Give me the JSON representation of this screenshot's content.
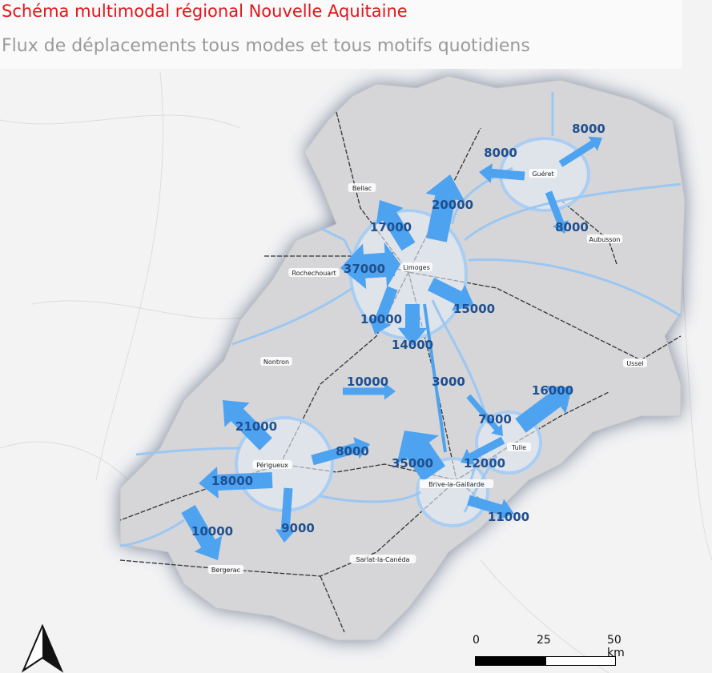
{
  "header": {
    "title": "Schéma multimodal régional Nouvelle Aquitaine",
    "subtitle": "Flux de déplacements tous modes et tous motifs quotidiens"
  },
  "colors": {
    "title": "#e3151a",
    "subtitle": "#9a9a9a",
    "flow_arrow": "#4ea3f0",
    "flow_label": "#1f4f8f",
    "region_fill": "#d6d6d8",
    "glow": "#4a5a78",
    "circle": "#a9cdf3"
  },
  "cities": [
    "Bellac",
    "Limoges",
    "Rochechouart",
    "Guéret",
    "Aubusson",
    "Nontron",
    "Ussel",
    "Tulle",
    "Périgueux",
    "Brive-la-Gaillarde",
    "Sarlat-la-Canéda",
    "Bergerac"
  ],
  "flows": [
    {
      "value": "8000",
      "from": "Guéret",
      "direction": "north-east"
    },
    {
      "value": "8000",
      "from": "Guéret",
      "direction": "west"
    },
    {
      "value": "8000",
      "from": "Guéret",
      "direction": "south"
    },
    {
      "value": "20000",
      "from": "Limoges",
      "direction": "north-east"
    },
    {
      "value": "17000",
      "from": "Limoges",
      "direction": "north-west"
    },
    {
      "value": "37000",
      "from": "Limoges",
      "direction": "west"
    },
    {
      "value": "15000",
      "from": "Limoges",
      "direction": "south-east"
    },
    {
      "value": "10000",
      "from": "Limoges",
      "direction": "south-west"
    },
    {
      "value": "14000",
      "from": "Limoges",
      "direction": "south"
    },
    {
      "value": "10000",
      "from": "Limoges-Périgueux",
      "direction": "center"
    },
    {
      "value": "3000",
      "from": "Limoges-Brive",
      "direction": "south"
    },
    {
      "value": "7000",
      "from": "Tulle",
      "direction": "north-west"
    },
    {
      "value": "16000",
      "from": "Tulle",
      "direction": "north-east"
    },
    {
      "value": "12000",
      "from": "Tulle-Brive",
      "direction": "west"
    },
    {
      "value": "35000",
      "from": "Brive-la-Gaillarde",
      "direction": "north-west"
    },
    {
      "value": "11000",
      "from": "Brive-la-Gaillarde",
      "direction": "east"
    },
    {
      "value": "21000",
      "from": "Périgueux",
      "direction": "north-west"
    },
    {
      "value": "8000",
      "from": "Périgueux",
      "direction": "east"
    },
    {
      "value": "18000",
      "from": "Périgueux",
      "direction": "west"
    },
    {
      "value": "10000",
      "from": "Périgueux-Bergerac",
      "direction": "south-west"
    },
    {
      "value": "9000",
      "from": "Périgueux",
      "direction": "south"
    }
  ],
  "scale_bar": {
    "ticks": [
      "0",
      "25",
      "50 km"
    ]
  },
  "north_arrow": "north-arrow-icon"
}
